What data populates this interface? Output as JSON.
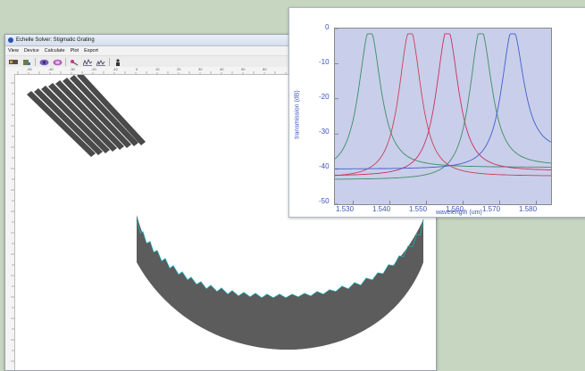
{
  "window": {
    "title": "Echelle Solver: Stigmatic Grating",
    "menu": [
      "View",
      "Device",
      "Calculate",
      "Plot",
      "Export"
    ],
    "toolbar_icons": [
      "layout-icon",
      "device-icon",
      "eye-icon",
      "lens-icon",
      "pen-icon",
      "waveform-icon",
      "spectrum-icon",
      "person-icon"
    ]
  },
  "ruler": {
    "top_labels": [
      "-50",
      "-40",
      "-30",
      "-20",
      "-10",
      "0",
      "10",
      "20",
      "30",
      "40",
      "50",
      "60"
    ]
  },
  "plot_window": {
    "chart_data": {
      "type": "line",
      "xlabel": "wavelength (um)",
      "ylabel": "transmission (dB)",
      "xlim": [
        1.525,
        1.584
      ],
      "ylim": [
        -50,
        0
      ],
      "x_ticks": [
        "1.530",
        "1.540",
        "1.550",
        "1.560",
        "1.570",
        "1.580"
      ],
      "y_ticks": [
        "0",
        "-10",
        "-20",
        "-30",
        "-40",
        "-50"
      ],
      "series": [
        {
          "color": "#3a8f63",
          "center": 1.5345,
          "floor_left": -41,
          "floor_right": -39.5
        },
        {
          "color": "#cc4055",
          "center": 1.5455,
          "floor_left": -42.5,
          "floor_right": -42
        },
        {
          "color": "#cc3060",
          "center": 1.5557,
          "floor_left": -42,
          "floor_right": -40.5
        },
        {
          "color": "#3e8f62",
          "center": 1.5648,
          "floor_left": -43,
          "floor_right": -39
        },
        {
          "color": "#4060cc",
          "center": 1.5735,
          "floor_left": -40,
          "floor_right": -35
        }
      ]
    }
  }
}
